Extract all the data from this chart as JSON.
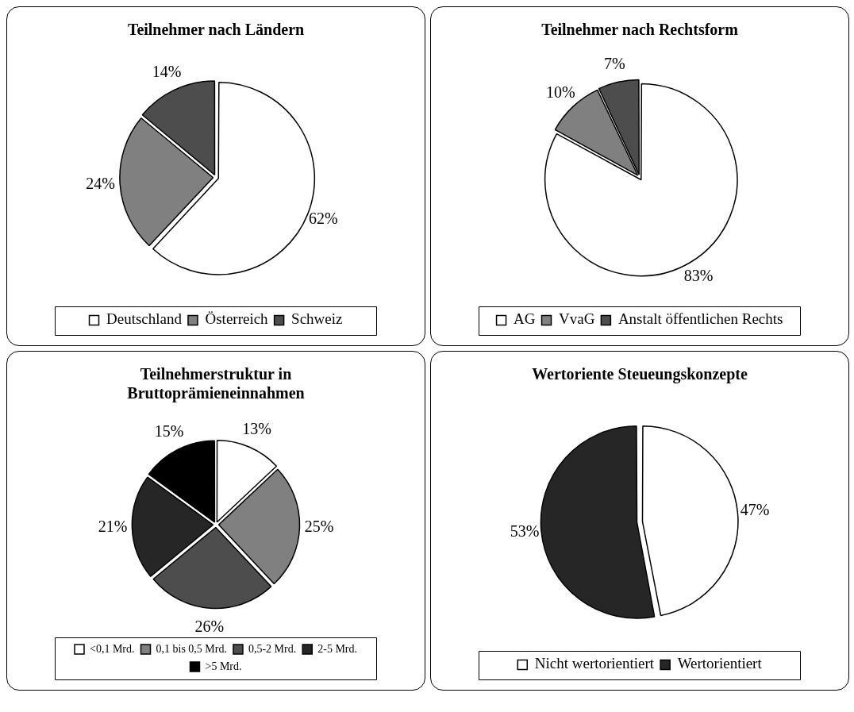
{
  "chart_data": [
    {
      "type": "pie",
      "title": "Teilnehmer nach Ländern",
      "categories": [
        "Deutschland",
        "Österreich",
        "Schweiz"
      ],
      "values": [
        62,
        24,
        14
      ],
      "colors": [
        "#ffffff",
        "#808080",
        "#4d4d4d"
      ],
      "value_labels": [
        "62%",
        "24%",
        "14%"
      ],
      "legend": "bottom"
    },
    {
      "type": "pie",
      "title": "Teilnehmer nach Rechtsform",
      "categories": [
        "AG",
        "VvaG",
        "Anstalt öffentlichen Rechts"
      ],
      "values": [
        83,
        10,
        7
      ],
      "colors": [
        "#ffffff",
        "#808080",
        "#4d4d4d"
      ],
      "value_labels": [
        "83%",
        "10%",
        "7%"
      ],
      "legend": "bottom"
    },
    {
      "type": "pie",
      "title": "Teilnehmerstruktur in Bruttoprämieneinnahmen",
      "categories": [
        "<0,1 Mrd.",
        "0,1 bis 0,5 Mrd.",
        "0,5-2 Mrd.",
        "2-5 Mrd.",
        ">5 Mrd."
      ],
      "values": [
        13,
        25,
        26,
        21,
        15
      ],
      "colors": [
        "#ffffff",
        "#808080",
        "#4d4d4d",
        "#262626",
        "#000000"
      ],
      "value_labels": [
        "13%",
        "25%",
        "26%",
        "21%",
        "15%"
      ],
      "legend": "bottom"
    },
    {
      "type": "pie",
      "title": "Wertoriente Steueungskonzepte",
      "categories": [
        "Nicht wertorientiert",
        "Wertorientiert"
      ],
      "values": [
        47,
        53
      ],
      "colors": [
        "#ffffff",
        "#262626"
      ],
      "value_labels": [
        "47%",
        "53%"
      ],
      "legend": "bottom"
    }
  ]
}
